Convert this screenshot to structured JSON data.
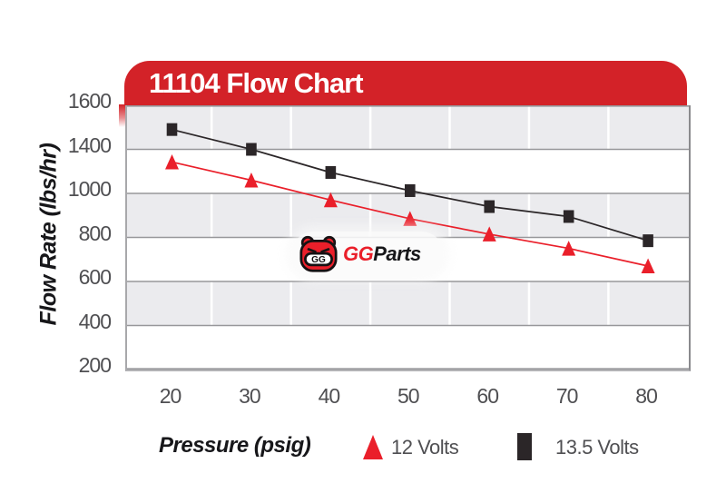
{
  "banner": {
    "title": "11104 Flow Chart"
  },
  "axes": {
    "y_title": "Flow Rate (lbs/hr)",
    "x_title": "Pressure (psig)",
    "y_tick_labels": [
      "1600",
      "1400",
      "1000",
      "800",
      "600",
      "400",
      "200"
    ],
    "x_tick_labels": [
      "20",
      "30",
      "40",
      "50",
      "60",
      "70",
      "80"
    ]
  },
  "legend": {
    "item_12v": {
      "label": "12 Volts",
      "marker": "triangle",
      "color": "#ea1f2a"
    },
    "item_13_5v": {
      "label": "13.5 Volts",
      "marker": "square",
      "color": "#2b2628"
    }
  },
  "watermark": {
    "brand_prefix": "GG",
    "brand_suffix": "Parts"
  },
  "chart_data": {
    "type": "line",
    "title": "11104 Flow Chart",
    "xlabel": "Pressure (psig)",
    "ylabel": "Flow Rate (lbs/hr)",
    "x": [
      20,
      30,
      40,
      50,
      60,
      70,
      80
    ],
    "series": [
      {
        "name": "12 Volts",
        "marker": "triangle",
        "color": "#ea1f2a",
        "values": [
          1285,
          1120,
          970,
          885,
          815,
          750,
          670
        ]
      },
      {
        "name": "13.5 Volts",
        "marker": "square",
        "color": "#2b2628",
        "values": [
          1490,
          1400,
          1190,
          1025,
          940,
          895,
          785
        ]
      }
    ],
    "y_gridline_values_top_to_bottom": [
      1600,
      1400,
      1000,
      800,
      600,
      400,
      200
    ],
    "x_minor_gridlines": [
      25,
      35,
      45,
      55,
      65,
      75
    ],
    "grid": "horizontal gray lines with alternating shaded bands, white vertical minor lines",
    "legend_position": "bottom"
  },
  "colors": {
    "banner_red": "#d32228",
    "series_red": "#ea1f2a",
    "series_black": "#2b2628",
    "band_gray": "#ebebee",
    "gridline_gray": "#97979a",
    "tick_text": "#4f4f52"
  }
}
